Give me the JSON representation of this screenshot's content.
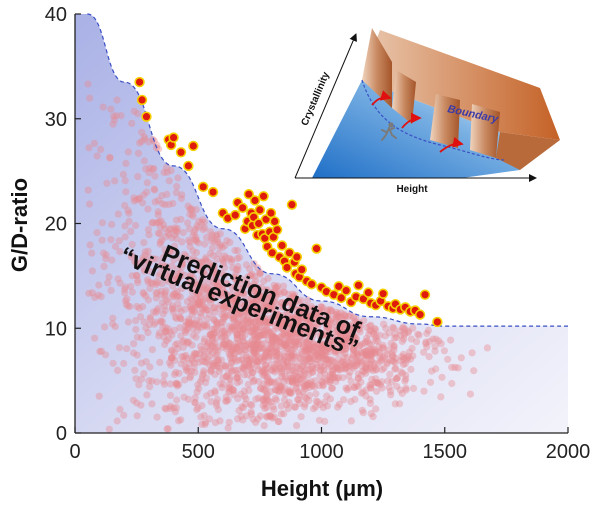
{
  "chart_data": {
    "type": "scatter",
    "title": "",
    "xlabel": "Height (μm)",
    "ylabel": "G/D-ratio",
    "xlim": [
      0,
      2000
    ],
    "ylim": [
      0,
      40
    ],
    "x_ticks": [
      0,
      500,
      1000,
      1500,
      2000
    ],
    "y_ticks": [
      0,
      10,
      20,
      30,
      40
    ],
    "annotation": [
      "Prediction data of",
      "“virtual experiments”"
    ],
    "boundary": {
      "style": "dashed",
      "color": "#3a4fc4",
      "fill": "#c9cdef",
      "x": [
        50,
        200,
        400,
        600,
        800,
        1000,
        1200,
        1400,
        1500,
        2000
      ],
      "y": [
        40,
        33.5,
        25.5,
        19.5,
        15.2,
        12.6,
        11.1,
        10.4,
        10.2,
        10.2
      ]
    },
    "series": [
      {
        "color": "#e88b92",
        "x_range": [
          50,
          1680
        ],
        "y_range": [
          0,
          34
        ],
        "count_estimate": 4000
      },
      {
        "color": "#e01a0c",
        "edge_color": "#f5d000",
        "x": [
          262,
          272,
          290,
          380,
          390,
          400,
          430,
          460,
          480,
          520,
          560,
          600,
          620,
          650,
          660,
          680,
          690,
          700,
          705,
          715,
          720,
          725,
          730,
          740,
          745,
          750,
          760,
          765,
          770,
          775,
          780,
          790,
          795,
          800,
          805,
          810,
          820,
          830,
          840,
          850,
          860,
          870,
          880,
          890,
          895,
          900,
          910,
          920,
          940,
          960,
          980,
          1000,
          1020,
          1050,
          1070,
          1080,
          1100,
          1120,
          1140,
          1150,
          1170,
          1190,
          1200,
          1220,
          1240,
          1250,
          1270,
          1290,
          1300,
          1320,
          1340,
          1360,
          1380,
          1400,
          1420,
          1470
        ],
        "y": [
          33.5,
          31.8,
          30.2,
          28.0,
          27.5,
          28.2,
          26.8,
          25.5,
          27.4,
          23.5,
          23.0,
          21.0,
          20.5,
          20.8,
          22.0,
          21.5,
          19.5,
          20.2,
          22.8,
          21.0,
          19.8,
          20.6,
          22.2,
          18.9,
          20.0,
          21.3,
          19.0,
          22.6,
          18.6,
          20.4,
          17.8,
          19.2,
          21.0,
          17.2,
          18.7,
          20.2,
          19.4,
          16.8,
          17.9,
          16.4,
          15.8,
          17.2,
          21.8,
          16.3,
          15.2,
          16.8,
          14.9,
          15.6,
          14.5,
          14.2,
          17.6,
          13.9,
          13.5,
          13.2,
          14.0,
          12.9,
          13.6,
          12.5,
          13.0,
          14.1,
          12.8,
          13.4,
          12.4,
          12.2,
          12.6,
          13.3,
          12.1,
          11.9,
          12.3,
          11.8,
          12.0,
          11.6,
          11.7,
          11.3,
          13.2,
          10.6
        ]
      }
    ],
    "inset": {
      "xlabel": "Height",
      "ylabel": "Crystallinity",
      "boundary_label": "Boundary"
    }
  }
}
